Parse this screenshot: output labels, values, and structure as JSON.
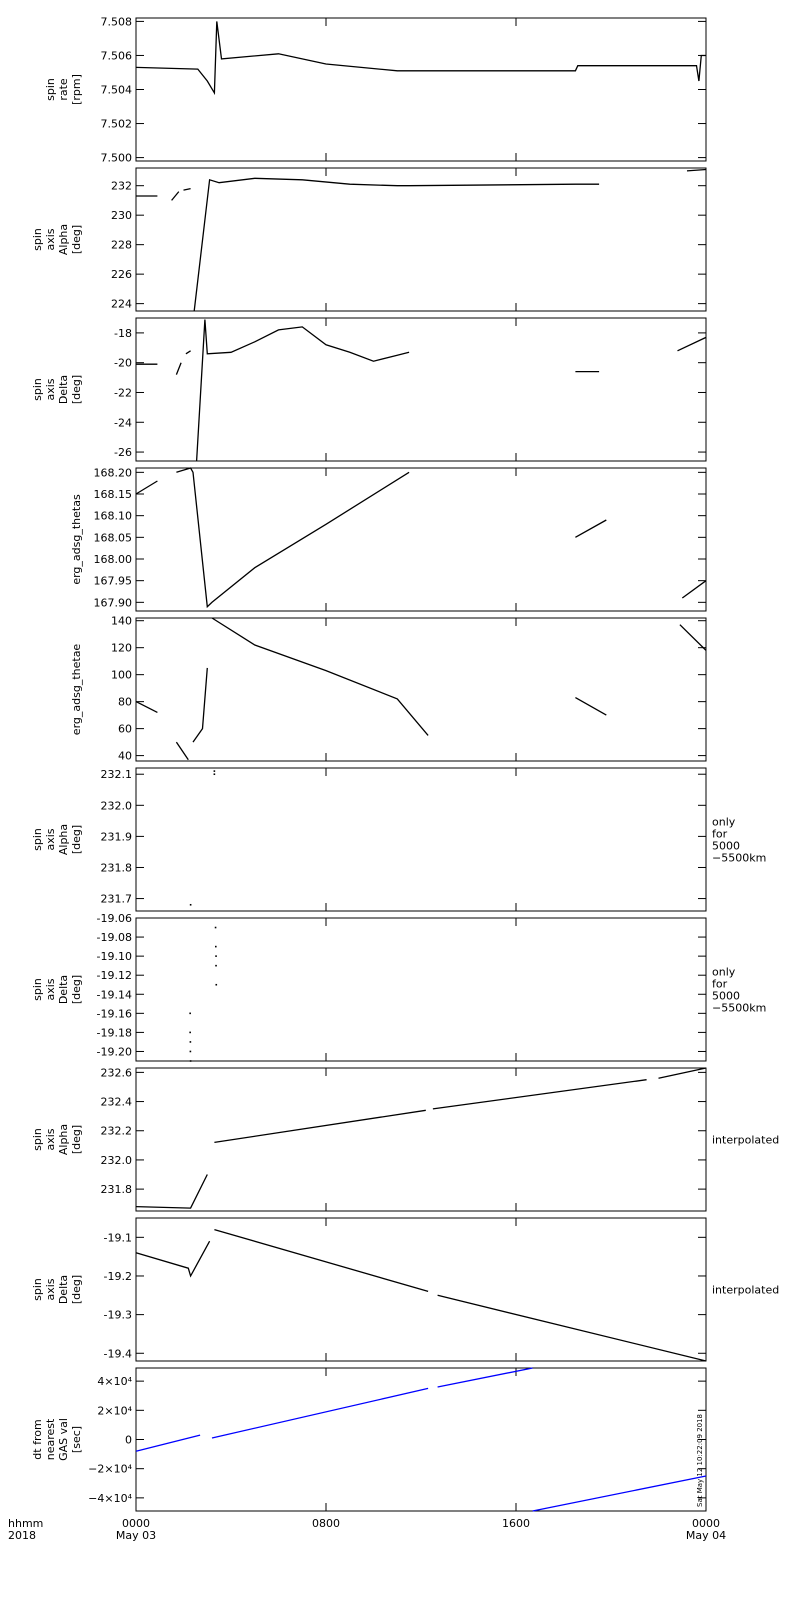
{
  "chart_data": [
    {
      "type": "line",
      "ylabel": "spin\nrate\n[rpm]",
      "xlim": [
        0,
        24
      ],
      "ylim": [
        7.4998,
        7.5082
      ],
      "yticks": [
        {
          "value": 7.5,
          "label": "7.500"
        },
        {
          "value": 7.502,
          "label": "7.502"
        },
        {
          "value": 7.504,
          "label": "7.504"
        },
        {
          "value": 7.506,
          "label": "7.506"
        },
        {
          "value": 7.508,
          "label": "7.508"
        }
      ],
      "series": [
        {
          "color": "#000000",
          "x": [
            0,
            2.6,
            3.0,
            3.3,
            3.4,
            3.6,
            6,
            8,
            11,
            18.5,
            18.6,
            23.6,
            23.7,
            23.8,
            24
          ],
          "values": [
            7.5053,
            7.5052,
            7.5045,
            7.5038,
            7.508,
            7.5058,
            7.5061,
            7.5055,
            7.5051,
            7.5051,
            7.5054,
            7.5054,
            7.5045,
            7.506,
            7.506
          ]
        }
      ]
    },
    {
      "type": "line",
      "ylabel": "spin\naxis\nAlpha\n[deg]",
      "xlim": [
        0,
        24
      ],
      "ylim": [
        223.5,
        233.2
      ],
      "yticks": [
        224,
        226,
        228,
        230,
        232
      ],
      "series": [
        {
          "color": "#000000",
          "x": [
            0,
            0.9,
            1.0,
            1.5,
            1.8,
            1.9,
            2.0,
            2.3,
            2.4,
            2.45,
            3.1,
            3.5,
            5,
            7,
            9,
            11,
            11.5,
            18.5,
            19.5,
            20,
            23.2,
            24
          ],
          "values": [
            231.3,
            231.3,
            null,
            231.0,
            231.6,
            null,
            231.7,
            231.8,
            null,
            223.5,
            232.4,
            232.2,
            232.5,
            232.4,
            232.1,
            232.0,
            232.0,
            232.1,
            232.1,
            null,
            233.0,
            233.1
          ]
        }
      ]
    },
    {
      "type": "line",
      "ylabel": "spin\naxis\nDelta\n[deg]",
      "xlim": [
        0,
        24
      ],
      "ylim": [
        -26.6,
        -17.0
      ],
      "yticks": [
        -26,
        -24,
        -22,
        -20,
        -18
      ],
      "series": [
        {
          "color": "#000000",
          "x": [
            0,
            0.9,
            1.0,
            1.7,
            1.9,
            2.0,
            2.1,
            2.3,
            2.4,
            2.55,
            2.9,
            3.0,
            4,
            5,
            6,
            7,
            8,
            9,
            10,
            11,
            11.5,
            12,
            18.5,
            19.5,
            20,
            22.8,
            24
          ],
          "values": [
            -20.1,
            -20.1,
            null,
            -20.8,
            -20.0,
            null,
            -19.4,
            -19.2,
            null,
            -26.6,
            -17.1,
            -19.4,
            -19.3,
            -18.6,
            -17.8,
            -17.6,
            -18.8,
            -19.3,
            -19.9,
            -19.5,
            -19.3,
            null,
            -20.6,
            -20.6,
            null,
            -19.2,
            -18.3
          ]
        }
      ]
    },
    {
      "type": "line",
      "ylabel": "erg_adsg_thetas",
      "xlim": [
        0,
        24
      ],
      "ylim": [
        167.88,
        168.21
      ],
      "yticks": [
        {
          "value": 167.9,
          "label": "167.90"
        },
        {
          "value": 167.95,
          "label": "167.95"
        },
        {
          "value": 168.0,
          "label": "168.00"
        },
        {
          "value": 168.05,
          "label": "168.05"
        },
        {
          "value": 168.1,
          "label": "168.10"
        },
        {
          "value": 168.15,
          "label": "168.15"
        },
        {
          "value": 168.2,
          "label": "168.20"
        }
      ],
      "series": [
        {
          "color": "#000000",
          "x": [
            0,
            0.9,
            1.0,
            1.7,
            2.3,
            2.4,
            3.0,
            3.2,
            5,
            8,
            11.5,
            12,
            18.5,
            19.8,
            20,
            23.0,
            24
          ],
          "values": [
            168.15,
            168.18,
            null,
            168.2,
            168.21,
            168.2,
            167.89,
            167.9,
            167.98,
            168.08,
            168.2,
            null,
            168.05,
            168.09,
            null,
            167.91,
            167.95
          ]
        }
      ]
    },
    {
      "type": "line",
      "ylabel": "erg_adsg_thetae",
      "xlim": [
        0,
        24
      ],
      "ylim": [
        36,
        142
      ],
      "yticks": [
        40,
        60,
        80,
        100,
        120,
        140
      ],
      "series": [
        {
          "color": "#000000",
          "x": [
            0,
            0.9,
            1.0,
            1.7,
            2.2,
            2.3,
            2.4,
            2.8,
            3.0,
            3.1,
            3.2,
            5,
            8,
            11,
            12.3,
            13,
            18.5,
            19.8,
            20,
            22.9,
            24
          ],
          "values": [
            80,
            72,
            null,
            50,
            37,
            null,
            50,
            60,
            105,
            null,
            142,
            122,
            103,
            82,
            55,
            null,
            83,
            70,
            null,
            137,
            118
          ]
        }
      ]
    },
    {
      "type": "scatter",
      "ylabel": "spin\naxis\nAlpha\n[deg]",
      "note": "only\nfor\n5000\n−5500km",
      "xlim": [
        0,
        24
      ],
      "ylim": [
        231.66,
        232.12
      ],
      "yticks": [
        {
          "value": 231.7,
          "label": "231.7"
        },
        {
          "value": 231.8,
          "label": "231.8"
        },
        {
          "value": 231.9,
          "label": "231.9"
        },
        {
          "value": 232.0,
          "label": "232.0"
        },
        {
          "value": 232.1,
          "label": "232.1"
        }
      ],
      "series": [
        {
          "color": "#000000",
          "x": [
            2.3,
            3.3,
            3.3
          ],
          "values": [
            231.68,
            232.11,
            232.1
          ]
        }
      ]
    },
    {
      "type": "scatter",
      "ylabel": "spin\naxis\nDelta\n[deg]",
      "note": "only\nfor\n5000\n−5500km",
      "xlim": [
        0,
        24
      ],
      "ylim": [
        -19.21,
        -19.06
      ],
      "yticks": [
        {
          "value": -19.2,
          "label": "-19.20"
        },
        {
          "value": -19.18,
          "label": "-19.18"
        },
        {
          "value": -19.16,
          "label": "-19.16"
        },
        {
          "value": -19.14,
          "label": "-19.14"
        },
        {
          "value": -19.12,
          "label": "-19.12"
        },
        {
          "value": -19.1,
          "label": "-19.10"
        },
        {
          "value": -19.08,
          "label": "-19.08"
        },
        {
          "value": -19.06,
          "label": "-19.06"
        }
      ],
      "series": [
        {
          "color": "#000000",
          "x": [
            2.28,
            2.28,
            2.29,
            2.29,
            2.3,
            3.35,
            3.36,
            3.37,
            3.37,
            3.38
          ],
          "values": [
            -19.16,
            -19.18,
            -19.19,
            -19.2,
            -19.21,
            -19.07,
            -19.09,
            -19.1,
            -19.11,
            -19.13
          ]
        }
      ]
    },
    {
      "type": "line",
      "ylabel": "spin\naxis\nAlpha\n[deg]",
      "note": "interpolated",
      "xlim": [
        0,
        24
      ],
      "ylim": [
        231.65,
        232.63
      ],
      "yticks": [
        {
          "value": 231.8,
          "label": "231.8"
        },
        {
          "value": 232.0,
          "label": "232.0"
        },
        {
          "value": 232.2,
          "label": "232.2"
        },
        {
          "value": 232.4,
          "label": "232.4"
        },
        {
          "value": 232.6,
          "label": "232.6"
        }
      ],
      "series": [
        {
          "color": "#000000",
          "x": [
            0,
            2.3,
            3.0,
            3.1,
            3.3,
            12.2,
            12.3,
            12.5,
            21.5,
            21.7,
            22,
            24
          ],
          "values": [
            231.68,
            231.67,
            231.9,
            null,
            232.12,
            232.34,
            null,
            232.35,
            232.55,
            null,
            232.56,
            232.63
          ]
        }
      ]
    },
    {
      "type": "line",
      "ylabel": "spin\naxis\nDelta\n[deg]",
      "note": "interpolated",
      "xlim": [
        0,
        24
      ],
      "ylim": [
        -19.42,
        -19.05
      ],
      "yticks": [
        -19.4,
        -19.3,
        -19.2,
        -19.1
      ],
      "series": [
        {
          "color": "#000000",
          "x": [
            0,
            2.2,
            2.3,
            3.1,
            3.2,
            3.3,
            12.3,
            12.5,
            12.7,
            24
          ],
          "values": [
            -19.14,
            -19.18,
            -19.2,
            -19.11,
            null,
            -19.08,
            -19.24,
            null,
            -19.25,
            -19.42
          ]
        }
      ]
    },
    {
      "type": "line",
      "ylabel": "dt from\nnearest\nGAS val\n[sec]",
      "annotation": "Sat May 12 10:22:09 2018",
      "xlabel": "hhmm\n2018",
      "xlim": [
        0,
        24
      ],
      "ylim": [
        -49000,
        49000
      ],
      "yticks": [
        {
          "value": -40000,
          "label": "−4×10⁴"
        },
        {
          "value": -20000,
          "label": "−2×10⁴"
        },
        0,
        {
          "value": 20000,
          "label": "2×10⁴"
        },
        {
          "value": 40000,
          "label": "4×10⁴"
        }
      ],
      "xticks": [
        {
          "value": 0,
          "label": "0000\nMay 03"
        },
        {
          "value": 8,
          "label": "0800"
        },
        {
          "value": 16,
          "label": "1600"
        },
        {
          "value": 24,
          "label": "0000\nMay 04"
        }
      ],
      "series": [
        {
          "color": "#0000ff",
          "x": [
            0,
            2.7,
            2.9,
            3.2,
            12.3,
            12.5,
            12.7,
            16.7,
            16.8,
            16.7,
            24
          ],
          "values": [
            -8000,
            3000,
            null,
            1000,
            35000,
            null,
            36000,
            49000,
            null,
            -49000,
            -25000
          ]
        }
      ]
    }
  ]
}
